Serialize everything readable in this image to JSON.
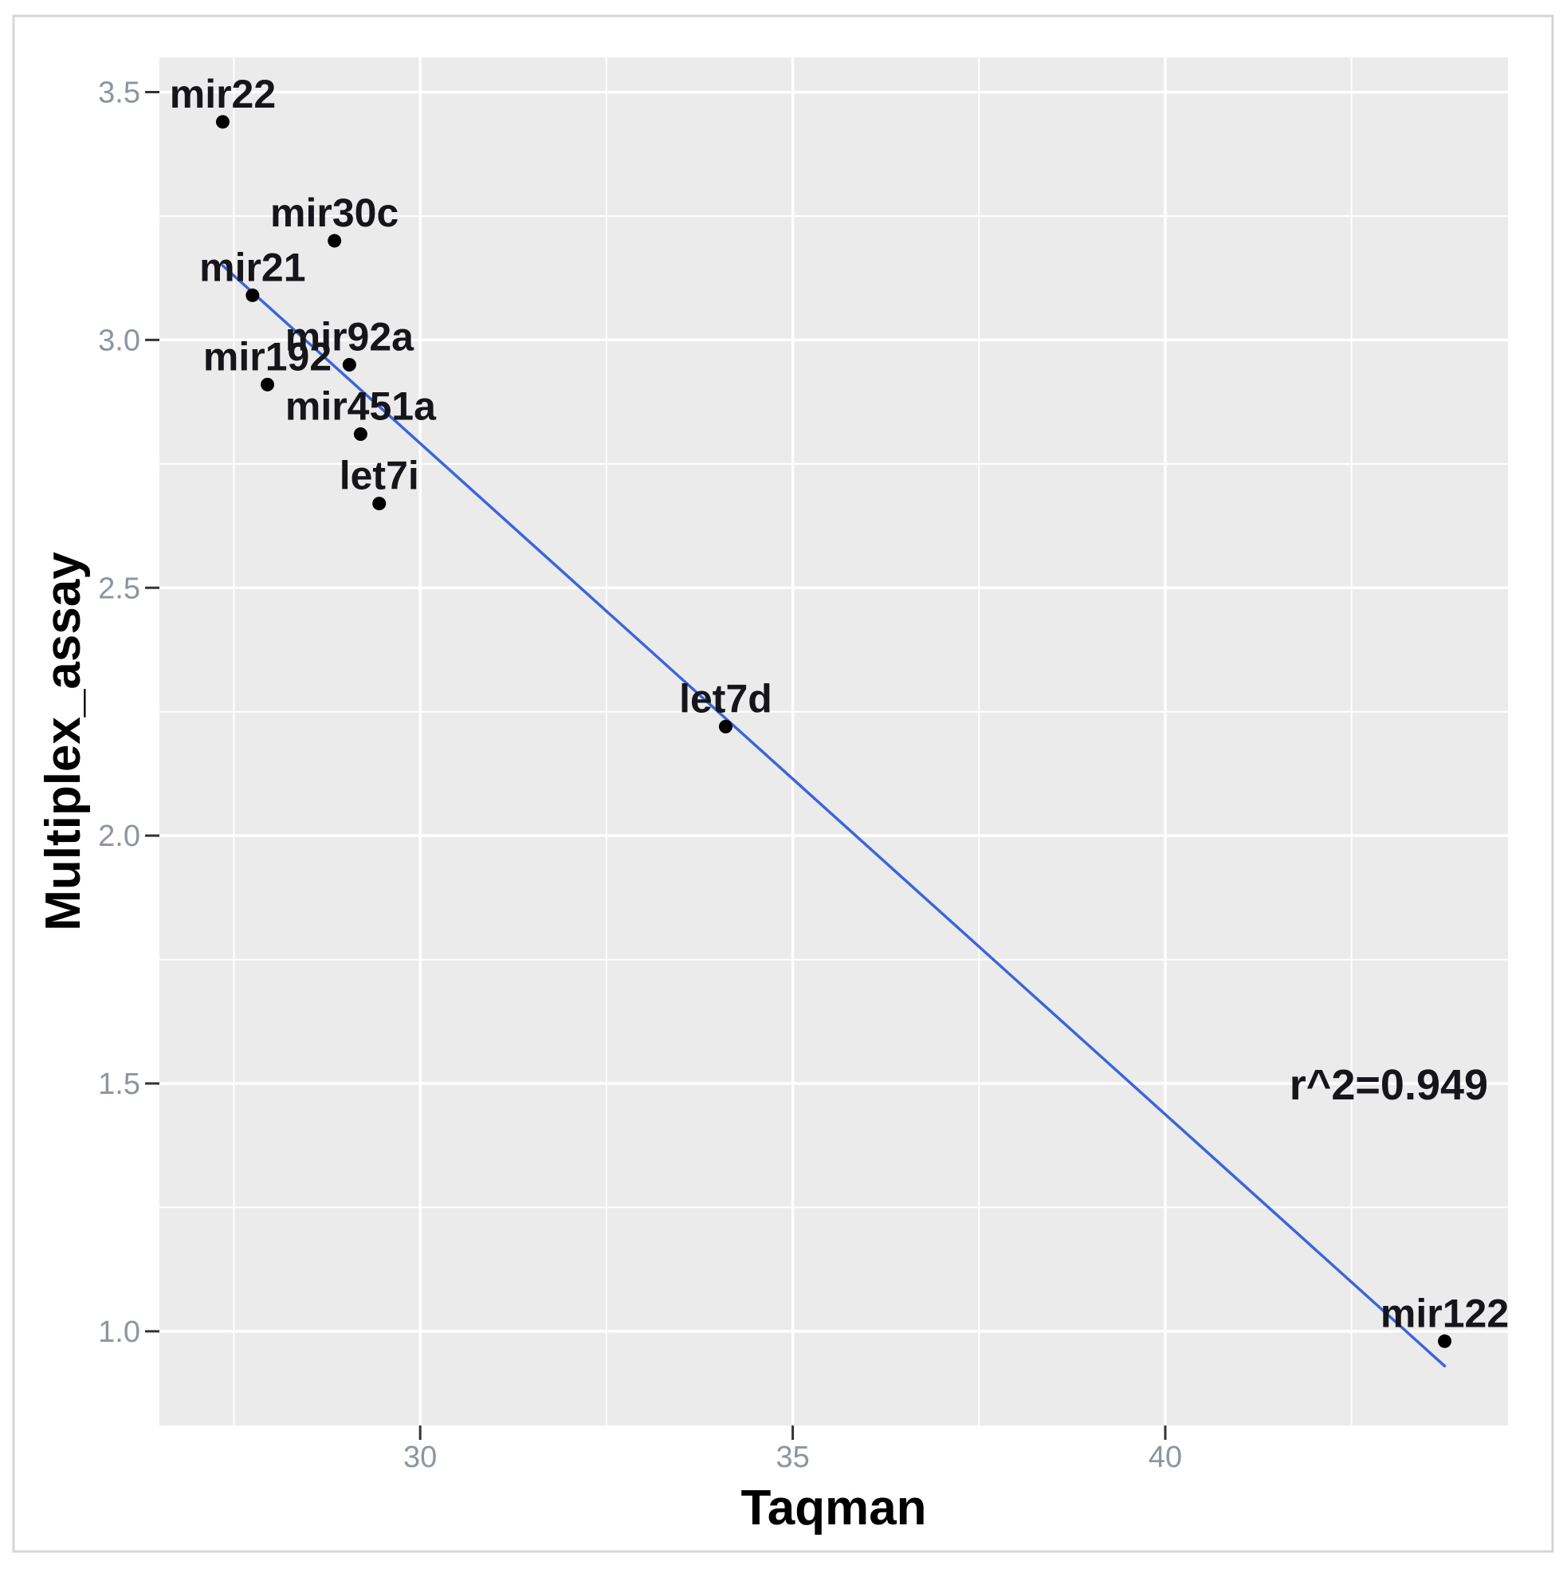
{
  "figure": {
    "background_color": "#ffffff",
    "border_color": "#d5d5d5",
    "panel_background_color": "#ebebeb",
    "gridline_color": "#ffffff",
    "axis_tick_color": "#333333",
    "tick_label_color": "#8e95a0",
    "axis_title_color": "#000000",
    "point_color": "#000000",
    "point_label_color": "#15151a",
    "trendline_color": "#3c64dc",
    "annotation_color": "#15151a"
  },
  "chart_data": {
    "type": "scatter",
    "title": "",
    "xlabel": "Taqman",
    "ylabel": "Multiplex_assay",
    "xlim": [
      26.5,
      44.6
    ],
    "ylim": [
      0.81,
      3.57
    ],
    "x_ticks": [
      30,
      35,
      40
    ],
    "x_minor_ticks": [
      27.5,
      32.5,
      37.5,
      42.5
    ],
    "y_ticks": [
      3.5,
      3.0,
      2.5,
      2.0,
      1.5,
      1.0
    ],
    "y_minor_ticks": [
      3.25,
      2.75,
      2.25,
      1.75,
      1.25
    ],
    "grid": true,
    "legend_position": "none",
    "points": [
      {
        "label": "mir22",
        "x": 27.35,
        "y": 3.44
      },
      {
        "label": "mir30c",
        "x": 28.85,
        "y": 3.2
      },
      {
        "label": "mir21",
        "x": 27.75,
        "y": 3.09
      },
      {
        "label": "mir92a",
        "x": 29.05,
        "y": 2.95
      },
      {
        "label": "mir192",
        "x": 27.95,
        "y": 2.91
      },
      {
        "label": "mir451a",
        "x": 29.2,
        "y": 2.81
      },
      {
        "label": "let7i",
        "x": 29.45,
        "y": 2.67
      },
      {
        "label": "let7d",
        "x": 34.1,
        "y": 2.22
      },
      {
        "label": "mir122",
        "x": 43.75,
        "y": 0.98
      }
    ],
    "trendline": {
      "x1": 27.35,
      "y1": 3.15,
      "x2": 43.75,
      "y2": 0.93
    },
    "annotation": {
      "text": "r^2=0.949",
      "x": 43.0,
      "y": 1.5
    }
  }
}
